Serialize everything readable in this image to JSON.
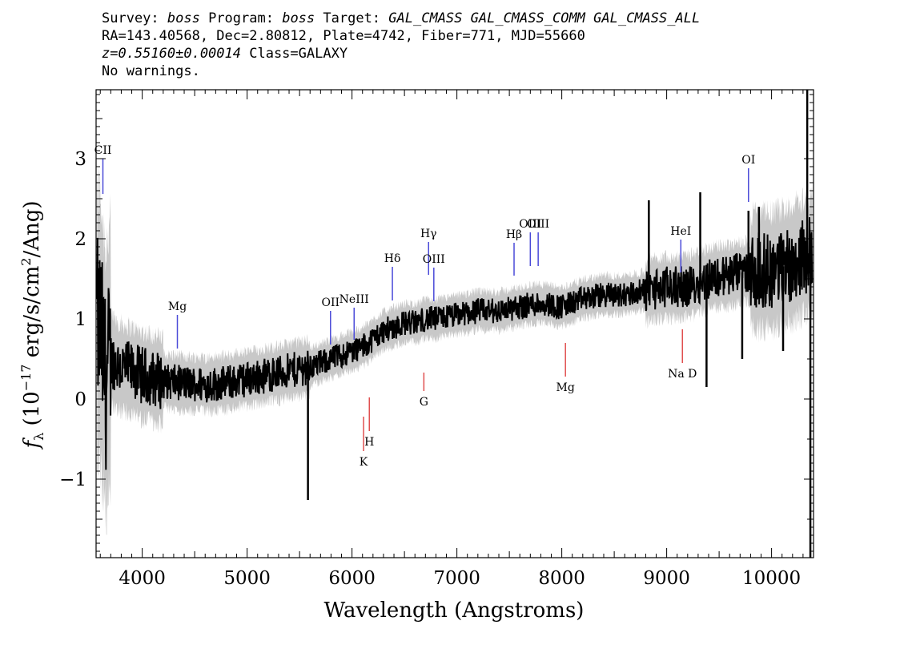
{
  "header": {
    "line1_prefix": "Survey: ",
    "survey": "boss",
    "line1_mid": " Program: ",
    "program": "boss",
    "line1_mid2": " Target: ",
    "target": "GAL_CMASS GAL_CMASS_COMM GAL_CMASS_ALL",
    "line2": "RA=143.40568, Dec=2.80812, Plate=4742, Fiber=771, MJD=55660",
    "redshift": "z=0.55160±0.00014",
    "class_text": " Class=GALAXY",
    "line4": "No warnings."
  },
  "colors": {
    "flux": "#000000",
    "error_band": "#c8c8c8",
    "emission": "#4a4ad8",
    "absorption": "#e05050"
  },
  "chart_data": {
    "type": "line",
    "title": "",
    "xlabel": "Wavelength (Angstroms)",
    "ylabel": "f_λ (10^-17 erg/s/cm^2/Ang)",
    "xlim": [
      3560,
      10400
    ],
    "ylim": [
      -1.98,
      3.86
    ],
    "xticks": [
      4000,
      5000,
      6000,
      7000,
      8000,
      9000,
      10000
    ],
    "yticks": [
      -1,
      0,
      1,
      2,
      3
    ],
    "series": [
      {
        "x": [
          3600,
          3650,
          3700,
          3800,
          3900,
          4000,
          4200,
          4400,
          4600,
          4800,
          5000,
          5200,
          5400,
          5580,
          5600,
          5700,
          5800,
          5900,
          6000,
          6100,
          6200,
          6300,
          6400,
          6500,
          6600,
          6700,
          6800,
          7000,
          7200,
          7400,
          7600,
          7800,
          8000,
          8200,
          8400,
          8600,
          8800,
          9000,
          9200,
          9300,
          9400,
          9600,
          9800,
          10000,
          10200,
          10350
        ],
        "values": [
          0.9,
          0.2,
          0.5,
          0.4,
          0.35,
          0.3,
          0.22,
          0.2,
          0.18,
          0.2,
          0.25,
          0.3,
          0.35,
          0.4,
          0.4,
          0.45,
          0.5,
          0.55,
          0.6,
          0.65,
          0.75,
          0.85,
          0.9,
          0.95,
          0.95,
          1.0,
          1.0,
          1.05,
          1.1,
          1.1,
          1.15,
          1.2,
          1.15,
          1.25,
          1.3,
          1.3,
          1.35,
          1.4,
          1.4,
          1.45,
          1.5,
          1.55,
          1.6,
          1.6,
          1.7,
          1.8
        ]
      }
    ],
    "spikes": [
      {
        "x": 5580,
        "value": -1.26
      },
      {
        "x": 8830,
        "value": 2.48
      },
      {
        "x": 9320,
        "value": 2.58
      },
      {
        "x": 9380,
        "value": 0.15
      },
      {
        "x": 9720,
        "value": 0.5
      },
      {
        "x": 9780,
        "value": 2.35
      },
      {
        "x": 9880,
        "value": 2.4
      },
      {
        "x": 10110,
        "value": 0.6
      },
      {
        "x": 10340,
        "value": 3.86
      },
      {
        "x": 10370,
        "value": -1.98
      }
    ],
    "emission_lines": [
      {
        "label": "CII",
        "x": 3625,
        "y_top": 3.0,
        "y_bottom": 2.56
      },
      {
        "label": "Mg",
        "x": 4335,
        "y_top": 1.05,
        "y_bottom": 0.63
      },
      {
        "label": "OII",
        "x": 5795,
        "y_top": 1.1,
        "y_bottom": 0.68
      },
      {
        "label": "NeIII",
        "x": 6020,
        "y_top": 1.14,
        "y_bottom": 0.74
      },
      {
        "label": "Hδ",
        "x": 6385,
        "y_top": 1.65,
        "y_bottom": 1.23
      },
      {
        "label": "Hγ",
        "x": 6730,
        "y_top": 1.96,
        "y_bottom": 1.55
      },
      {
        "label": "OIII",
        "x": 6780,
        "y_top": 1.64,
        "y_bottom": 1.22
      },
      {
        "label": "Hβ",
        "x": 7545,
        "y_top": 1.95,
        "y_bottom": 1.54
      },
      {
        "label": "OIII",
        "x": 7700,
        "y_top": 2.08,
        "y_bottom": 1.66
      },
      {
        "label": "OIII",
        "x": 7775,
        "y_top": 2.08,
        "y_bottom": 1.66
      },
      {
        "label": "HeI",
        "x": 9135,
        "y_top": 1.99,
        "y_bottom": 1.58
      },
      {
        "label": "OI",
        "x": 9780,
        "y_top": 2.88,
        "y_bottom": 2.46
      }
    ],
    "absorption_lines": [
      {
        "label": "K",
        "x": 6110,
        "y_top": -0.22,
        "y_bottom": -0.65
      },
      {
        "label": "H",
        "x": 6165,
        "y_top": 0.02,
        "y_bottom": -0.4
      },
      {
        "label": "G",
        "x": 6685,
        "y_top": 0.33,
        "y_bottom": 0.1
      },
      {
        "label": "Mg",
        "x": 8035,
        "y_top": 0.7,
        "y_bottom": 0.28
      },
      {
        "label": "Na D",
        "x": 9150,
        "y_top": 0.87,
        "y_bottom": 0.45
      }
    ]
  }
}
